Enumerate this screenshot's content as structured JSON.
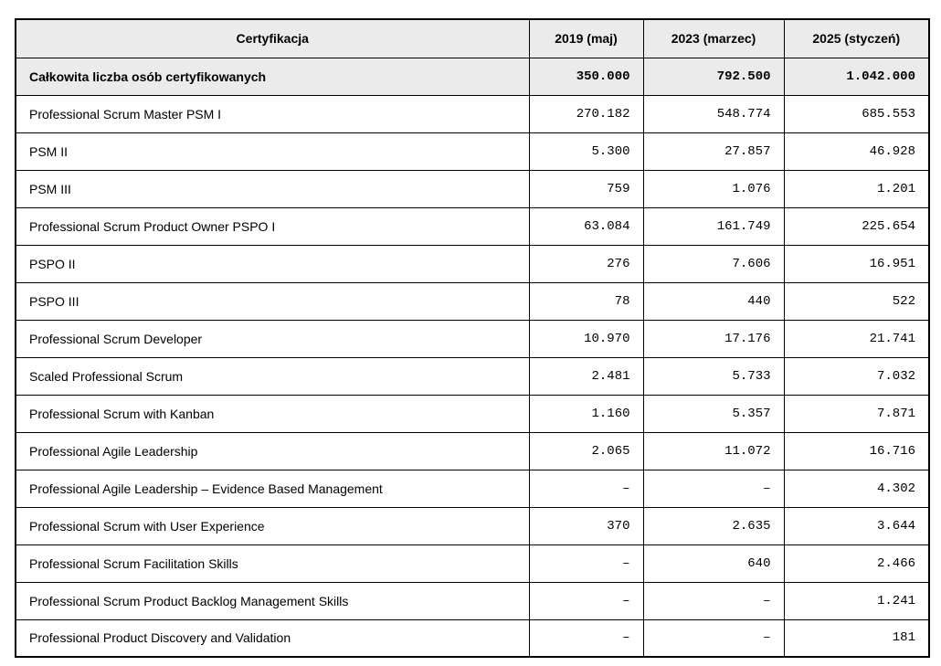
{
  "table": {
    "columns": [
      "Certyfikacja",
      "2019 (maj)",
      "2023 (marzec)",
      "2025 (styczeń)"
    ],
    "summary_row": {
      "label": "Całkowita liczba osób certyfikowanych",
      "values": [
        "350.000",
        "792.500",
        "1.042.000"
      ]
    },
    "rows": [
      {
        "label": "Professional Scrum Master PSM I",
        "values": [
          "270.182",
          "548.774",
          "685.553"
        ]
      },
      {
        "label": "PSM II",
        "values": [
          "5.300",
          "27.857",
          "46.928"
        ]
      },
      {
        "label": "PSM III",
        "values": [
          "759",
          "1.076",
          "1.201"
        ]
      },
      {
        "label": "Professional Scrum Product Owner PSPO I",
        "values": [
          "63.084",
          "161.749",
          "225.654"
        ]
      },
      {
        "label": "PSPO II",
        "values": [
          "276",
          "7.606",
          "16.951"
        ]
      },
      {
        "label": "PSPO III",
        "values": [
          "78",
          "440",
          "522"
        ]
      },
      {
        "label": "Professional Scrum Developer",
        "values": [
          "10.970",
          "17.176",
          "21.741"
        ]
      },
      {
        "label": "Scaled Professional Scrum",
        "values": [
          "2.481",
          "5.733",
          "7.032"
        ]
      },
      {
        "label": "Professional Scrum with Kanban",
        "values": [
          "1.160",
          "5.357",
          "7.871"
        ]
      },
      {
        "label": "Professional Agile Leadership",
        "values": [
          "2.065",
          "11.072",
          "16.716"
        ]
      },
      {
        "label": "Professional Agile Leadership – Evidence Based Management",
        "values": [
          "–",
          "–",
          "4.302"
        ]
      },
      {
        "label": "Professional Scrum with User Experience",
        "values": [
          "370",
          "2.635",
          "3.644"
        ]
      },
      {
        "label": "Professional Scrum Facilitation Skills",
        "values": [
          "–",
          "640",
          "2.466"
        ]
      },
      {
        "label": "Professional Scrum Product Backlog Management Skills",
        "values": [
          "–",
          "–",
          "1.241"
        ]
      },
      {
        "label": "Professional Product Discovery and Validation",
        "values": [
          "–",
          "–",
          "181"
        ]
      }
    ],
    "colors": {
      "header_bg": "#ebebeb",
      "summary_bg": "#ebebeb",
      "border": "#000000",
      "text": "#000000"
    }
  }
}
